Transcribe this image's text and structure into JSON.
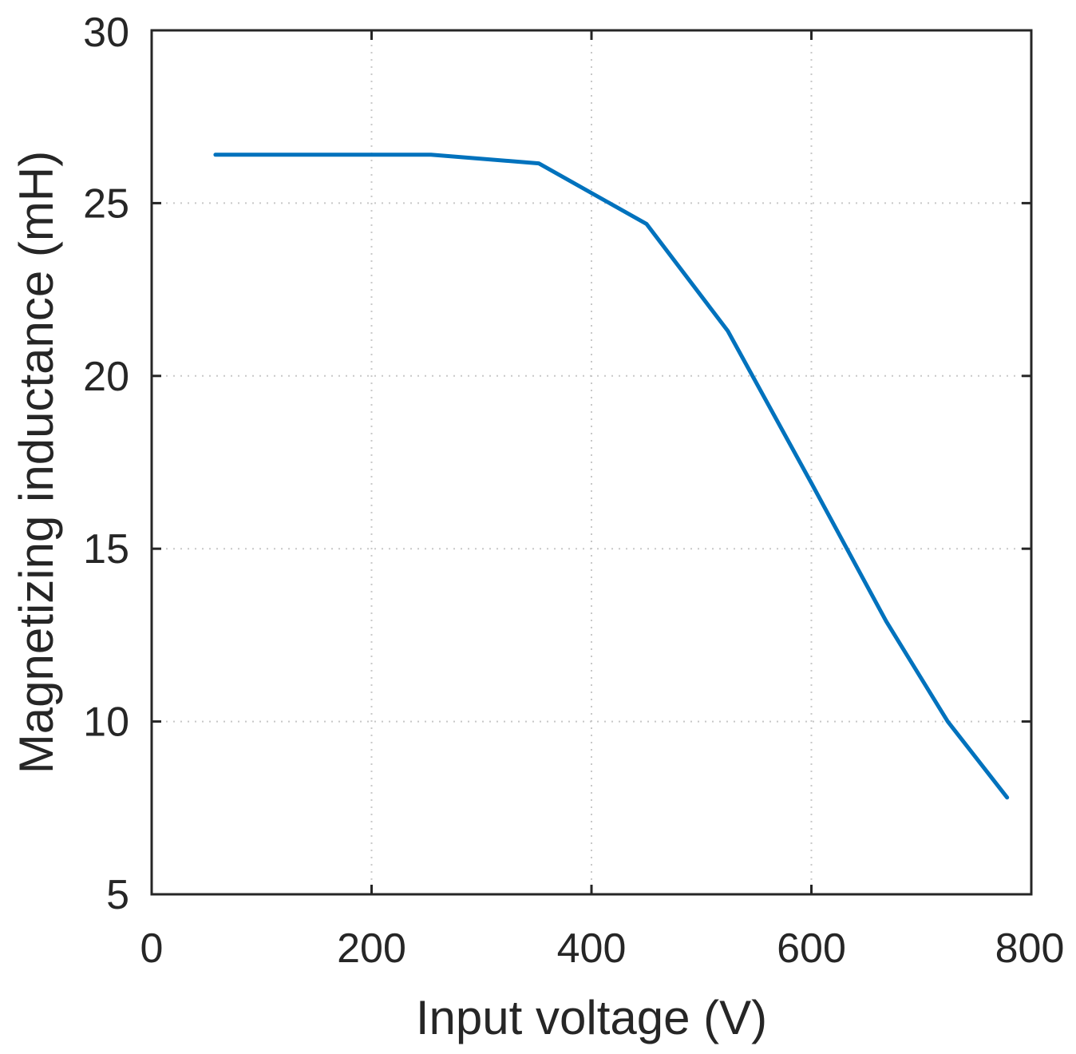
{
  "chart_data": {
    "type": "line",
    "xlabel": "Input voltage (V)",
    "ylabel": "Magnetizing inductance (mH)",
    "xlim": [
      0,
      800
    ],
    "ylim": [
      5,
      30
    ],
    "xticks": [
      0,
      200,
      400,
      600,
      800
    ],
    "yticks": [
      5,
      10,
      15,
      20,
      25,
      30
    ],
    "xtick_labels": [
      "0",
      "200",
      "400",
      "600",
      "800"
    ],
    "ytick_labels": [
      "5",
      "10",
      "15",
      "20",
      "25",
      "30"
    ],
    "grid": true,
    "box": true,
    "series": [
      {
        "color": "#0072bd",
        "x": [
          58,
          254,
          352,
          450,
          524,
          600,
          668,
          724,
          778
        ],
        "y": [
          26.4,
          26.4,
          26.15,
          24.4,
          21.3,
          16.9,
          12.9,
          10.0,
          7.8
        ]
      }
    ]
  }
}
